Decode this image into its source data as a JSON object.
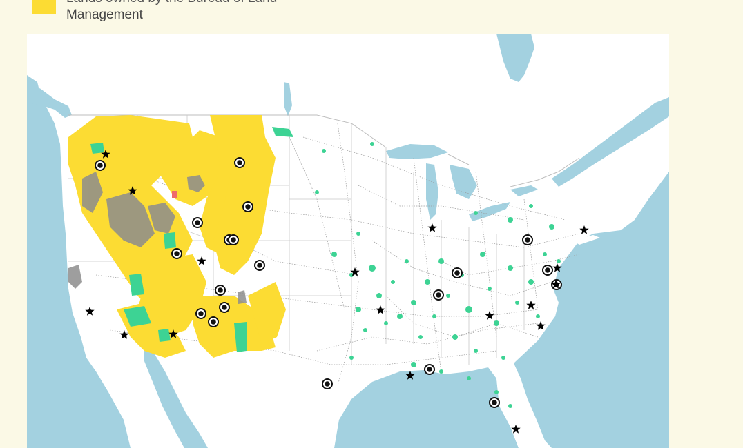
{
  "legend": {
    "swatch_color": "#fcdc33",
    "label_line1": "Lands owned by the Bureau of Land",
    "label_line2": "Management"
  },
  "map": {
    "colors": {
      "water": "#a3d1e0",
      "land": "#ffffff",
      "blm": "#fcdc33",
      "green_lands": "#3dd394",
      "red_areas": "#ef6b6b",
      "grey_areas": "#8a8a8a"
    },
    "markers": {
      "circle_marker": "circle-target-icon",
      "star_marker": "star-icon"
    }
  }
}
